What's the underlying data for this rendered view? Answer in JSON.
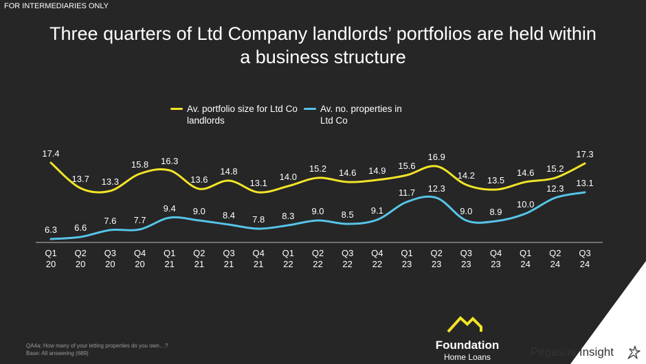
{
  "banner": "FOR INTERMEDIARIES ONLY",
  "title_line1": "Three quarters of Ltd Company landlords’ portfolios are held within",
  "title_line2": "a business structure",
  "colors": {
    "background": "#262626",
    "series1": "#f2e528",
    "series2": "#56c5e8",
    "axis": "#bfbfbf"
  },
  "chart_data": {
    "type": "line",
    "categories": [
      [
        "Q1",
        "20"
      ],
      [
        "Q2",
        "20"
      ],
      [
        "Q3",
        "20"
      ],
      [
        "Q4",
        "20"
      ],
      [
        "Q1",
        "21"
      ],
      [
        "Q2",
        "21"
      ],
      [
        "Q3",
        "21"
      ],
      [
        "Q4",
        "21"
      ],
      [
        "Q1",
        "22"
      ],
      [
        "Q2",
        "22"
      ],
      [
        "Q3",
        "22"
      ],
      [
        "Q4",
        "22"
      ],
      [
        "Q1",
        "23"
      ],
      [
        "Q2",
        "23"
      ],
      [
        "Q3",
        "23"
      ],
      [
        "Q4",
        "23"
      ],
      [
        "Q1",
        "24"
      ],
      [
        "Q2",
        "24"
      ],
      [
        "Q3",
        "24"
      ]
    ],
    "series": [
      {
        "name_line1": "Av. portfolio size for Ltd Co",
        "name_line2": "landlords",
        "values": [
          17.4,
          13.7,
          13.3,
          15.8,
          16.3,
          13.6,
          14.8,
          13.1,
          14.0,
          15.2,
          14.6,
          14.9,
          15.6,
          16.9,
          14.2,
          13.5,
          14.6,
          15.2,
          17.3
        ],
        "labels": [
          "17.4",
          "13.7",
          "13.3",
          "15.8",
          "16.3",
          "13.6",
          "14.8",
          "13.1",
          "14.0",
          "15.2",
          "14.6",
          "14.9",
          "15.6",
          "16.9",
          "14.2",
          "13.5",
          "14.6",
          "15.2",
          "17.3"
        ]
      },
      {
        "name_line1": "Av. no. properties in",
        "name_line2": "Ltd Co",
        "values": [
          6.3,
          6.6,
          7.6,
          7.7,
          9.4,
          9.0,
          8.4,
          7.8,
          8.3,
          9.0,
          8.5,
          9.1,
          11.7,
          12.3,
          9.0,
          8.9,
          10.0,
          12.3,
          13.1
        ],
        "labels": [
          "6.3",
          "6.6",
          "7.6",
          "7.7",
          "9.4",
          "9.0",
          "8.4",
          "7.8",
          "8.3",
          "9.0",
          "8.5",
          "9.1",
          "11.7",
          "12.3",
          "9.0",
          "8.9",
          "10.0",
          "12.3",
          "13.1"
        ]
      }
    ],
    "ylim": [
      5.5,
      17.5
    ],
    "grid": false
  },
  "footnote": {
    "line1": "QA4a: How many of your letting properties do you own…?",
    "line2": "Base: All answering (689)"
  },
  "logo": {
    "name": "Foundation",
    "sub": "Home Loans"
  },
  "brand": "Pegasus Insight"
}
